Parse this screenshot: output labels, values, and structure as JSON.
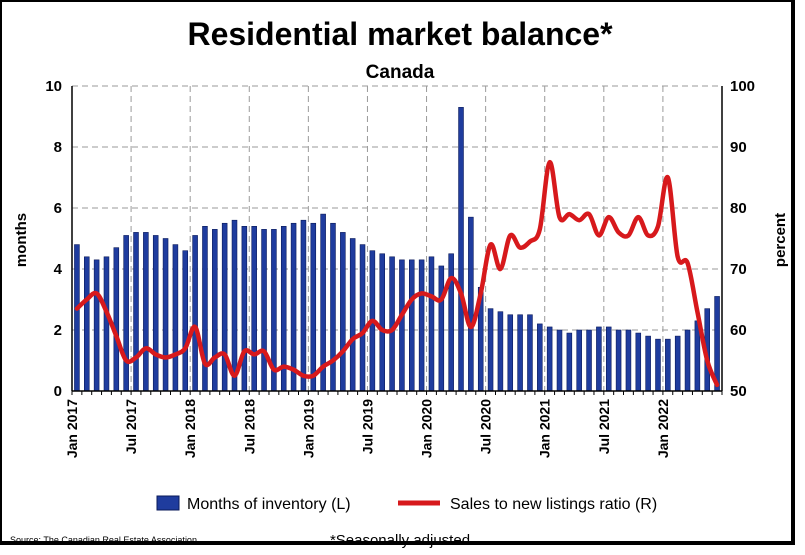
{
  "chart_data": {
    "type": "bar",
    "title": "Residential market balance*",
    "subtitle": "Canada",
    "ylabel_left": "months",
    "ylabel_right": "percent",
    "ylim_left": [
      0,
      10
    ],
    "ylim_right": [
      50,
      100
    ],
    "yticks_left": [
      "0",
      "2",
      "4",
      "6",
      "8",
      "10"
    ],
    "yticks_right": [
      "50",
      "60",
      "70",
      "80",
      "90",
      "100"
    ],
    "x_tick_labels": [
      "Jan 2017",
      "Jul 2017",
      "Jan 2018",
      "Jul 2018",
      "Jan 2019",
      "Jul 2019",
      "Jan 2020",
      "Jul 2020",
      "Jan 2021",
      "Jul 2021",
      "Jan 2022"
    ],
    "x_start": "Jan 2017",
    "x_end": "Dec 2022",
    "grid": true,
    "legend_position": "bottom",
    "series": [
      {
        "name": "Months of inventory (L)",
        "type": "bar",
        "axis": "left",
        "color": "#1f3c9e",
        "values": [
          4.8,
          4.4,
          4.3,
          4.4,
          4.7,
          5.1,
          5.2,
          5.2,
          5.1,
          5.0,
          4.8,
          4.6,
          5.1,
          5.4,
          5.3,
          5.5,
          5.6,
          5.4,
          5.4,
          5.3,
          5.3,
          5.4,
          5.5,
          5.6,
          5.5,
          5.8,
          5.5,
          5.2,
          5.0,
          4.8,
          4.6,
          4.5,
          4.4,
          4.3,
          4.3,
          4.3,
          4.4,
          4.1,
          4.5,
          9.3,
          5.7,
          3.4,
          2.7,
          2.6,
          2.5,
          2.5,
          2.5,
          2.2,
          2.1,
          2.0,
          1.9,
          2.0,
          2.0,
          2.1,
          2.1,
          2.0,
          2.0,
          1.9,
          1.8,
          1.7,
          1.7,
          1.8,
          2.0,
          2.3,
          2.7,
          3.1
        ]
      },
      {
        "name": "Sales to new listings ratio (R)",
        "type": "line",
        "axis": "right",
        "color": "#d7191c",
        "values": [
          63.5,
          65.0,
          66.0,
          63.0,
          59.0,
          55.0,
          55.5,
          57.0,
          56.0,
          55.5,
          56.0,
          57.0,
          60.5,
          54.5,
          55.5,
          56.0,
          52.5,
          56.5,
          56.0,
          56.5,
          53.5,
          54.0,
          53.5,
          52.5,
          52.5,
          54.0,
          55.0,
          56.5,
          58.5,
          59.5,
          61.5,
          60.0,
          60.0,
          62.5,
          65.0,
          66.0,
          65.5,
          65.0,
          68.5,
          66.0,
          60.5,
          66.0,
          74.0,
          70.0,
          75.5,
          73.5,
          74.5,
          76.5,
          87.5,
          78.5,
          79.0,
          78.0,
          79.0,
          75.5,
          78.5,
          76.0,
          75.5,
          78.5,
          75.5,
          77.0,
          85.0,
          72.0,
          71.0,
          63.0,
          55.0,
          51.0
        ]
      }
    ]
  },
  "legend": [
    {
      "label": "Months of inventory (L)",
      "kind": "bar",
      "color": "#1f3c9e"
    },
    {
      "label": "Sales to new listings ratio (R)",
      "kind": "line",
      "color": "#d7191c"
    }
  ],
  "source": "Source: The Canadian Real Estate Association",
  "footnote": "*Seasonally adjusted"
}
